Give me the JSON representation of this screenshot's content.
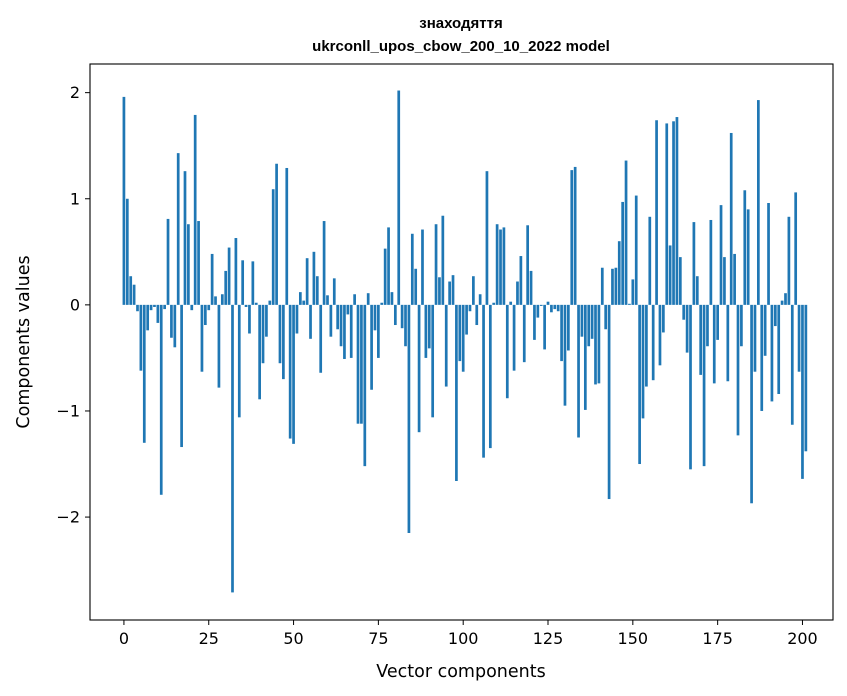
{
  "chart_data": {
    "type": "bar",
    "title": "знаходяття",
    "subtitle": "ukrconll_upos_cbow_200_10_2022 model",
    "xlabel": "Vector components",
    "ylabel": "Components values",
    "xlim": [
      -10,
      209
    ],
    "ylim": [
      -2.97,
      2.27
    ],
    "xticks": [
      0,
      25,
      50,
      75,
      100,
      125,
      150,
      175,
      200
    ],
    "yticks": [
      -2,
      -1,
      0,
      1,
      2
    ],
    "ytick_labels": [
      "−2",
      "−1",
      "0",
      "1",
      "2"
    ],
    "bar_color": "#1f77b4",
    "grid": false,
    "legend": "none",
    "values": [
      1.96,
      1.0,
      0.27,
      0.19,
      -0.06,
      -0.62,
      -1.3,
      -0.24,
      -0.05,
      -0.02,
      -0.17,
      -1.79,
      -0.04,
      0.81,
      -0.31,
      -0.4,
      1.43,
      -1.34,
      1.26,
      0.76,
      -0.05,
      1.79,
      0.79,
      -0.63,
      -0.19,
      -0.05,
      0.48,
      0.08,
      -0.78,
      0.1,
      0.32,
      0.54,
      -2.71,
      0.63,
      -1.06,
      0.42,
      -0.02,
      -0.27,
      0.41,
      0.02,
      -0.89,
      -0.55,
      -0.3,
      0.04,
      1.09,
      1.33,
      -0.55,
      -0.7,
      1.29,
      -1.26,
      -1.31,
      -0.27,
      0.12,
      0.04,
      0.44,
      -0.32,
      0.5,
      0.27,
      -0.64,
      0.79,
      0.09,
      -0.3,
      0.25,
      -0.23,
      -0.39,
      -0.51,
      -0.09,
      -0.5,
      0.1,
      -1.12,
      -1.12,
      -1.52,
      0.11,
      -0.8,
      -0.24,
      -0.5,
      0.02,
      0.53,
      0.73,
      0.12,
      -0.19,
      2.02,
      -0.22,
      -0.39,
      -2.15,
      0.67,
      0.34,
      -1.2,
      0.71,
      -0.5,
      -0.41,
      -1.06,
      0.76,
      0.26,
      0.84,
      -0.77,
      0.22,
      0.28,
      -1.66,
      -0.53,
      -0.63,
      -0.28,
      -0.06,
      0.27,
      -0.19,
      0.1,
      -1.44,
      1.26,
      -1.35,
      0.02,
      0.76,
      0.71,
      0.73,
      -0.88,
      0.03,
      -0.62,
      0.22,
      0.46,
      -0.54,
      0.75,
      0.32,
      -0.33,
      -0.12,
      -0.01,
      -0.42,
      0.03,
      -0.07,
      -0.04,
      -0.06,
      -0.53,
      -0.95,
      -0.43,
      1.27,
      1.3,
      -1.25,
      -0.3,
      -0.99,
      -0.39,
      -0.32,
      -0.75,
      -0.74,
      0.35,
      -0.23,
      -1.83,
      0.34,
      0.35,
      0.6,
      0.97,
      1.36,
      0.01,
      0.24,
      1.03,
      -1.5,
      -1.07,
      -0.77,
      0.83,
      -0.71,
      1.74,
      -0.57,
      -0.26,
      1.71,
      0.56,
      1.73,
      1.77,
      0.45,
      -0.14,
      -0.45,
      -1.55,
      0.78,
      0.27,
      -0.66,
      -1.52,
      -0.39,
      0.8,
      -0.74,
      -0.33,
      0.94,
      0.45,
      -0.72,
      1.62,
      0.48,
      -1.23,
      -0.39,
      1.08,
      0.9,
      -1.87,
      -0.63,
      1.93,
      -1.0,
      -0.48,
      0.96,
      -0.91,
      -0.2,
      -0.84,
      0.04,
      0.11,
      0.83,
      -1.13,
      1.06,
      -0.63,
      -1.64,
      -1.38
    ]
  }
}
